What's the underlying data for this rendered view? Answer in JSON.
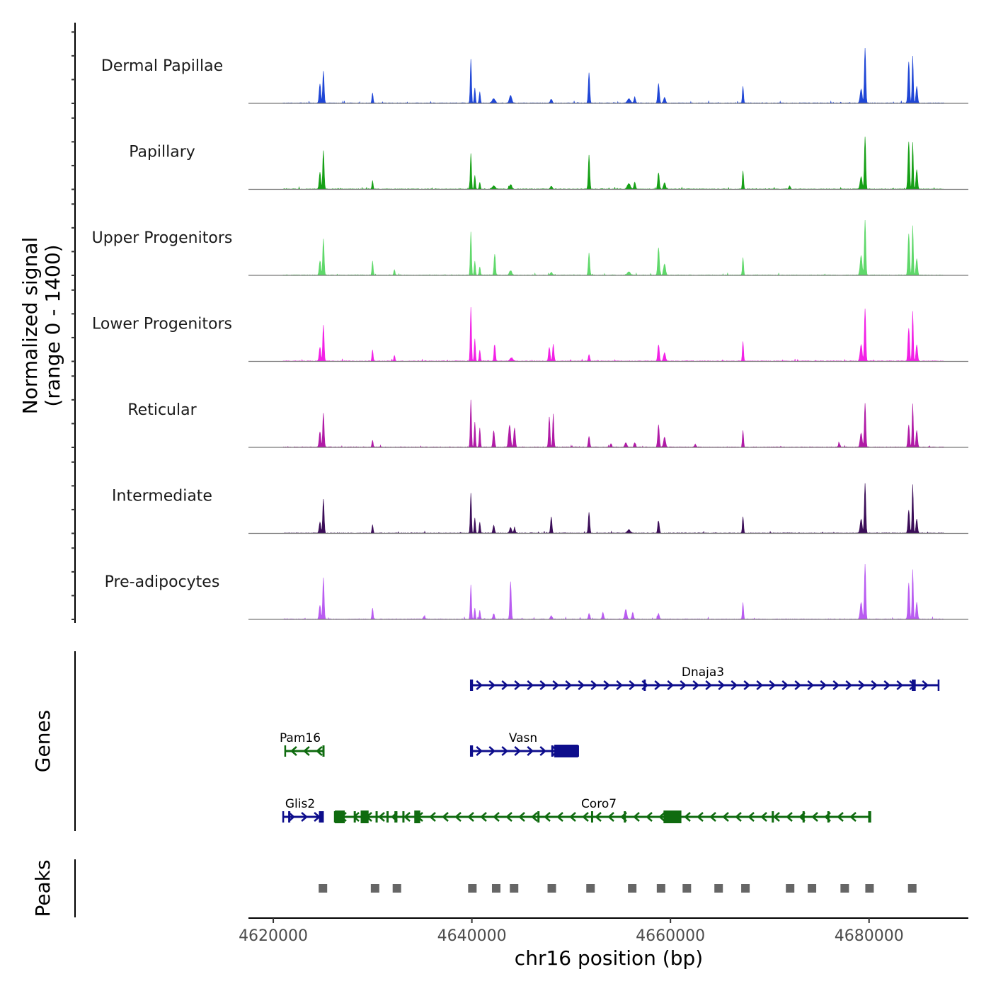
{
  "chart_data": {
    "type": "area",
    "title": "",
    "xlabel": "chr16 position (bp)",
    "ylabel": "Normalized signal\n(range 0 - 1400)",
    "ylabel_lines": [
      "Normalized signal",
      "(range 0 - 1400)"
    ],
    "ylim": [
      0,
      1400
    ],
    "xlim": [
      4617500,
      4690000
    ],
    "x_ticks": [
      4620000,
      4640000,
      4660000,
      4680000
    ],
    "x_tick_labels": [
      "4620000",
      "4640000",
      "4660000",
      "4680000"
    ],
    "panels": {
      "genes_label": "Genes",
      "peaks_label": "Peaks"
    },
    "tracks": [
      {
        "name": "Dermal Papillae",
        "color": "#1f46d6",
        "peaks": [
          [
            4624700,
            0.35,
            80
          ],
          [
            4625050,
            0.58,
            70
          ],
          [
            4630000,
            0.18,
            60
          ],
          [
            4639900,
            0.8,
            60
          ],
          [
            4640300,
            0.28,
            60
          ],
          [
            4640800,
            0.2,
            60
          ],
          [
            4642200,
            0.08,
            150
          ],
          [
            4643900,
            0.14,
            120
          ],
          [
            4648000,
            0.07,
            100
          ],
          [
            4651800,
            0.55,
            70
          ],
          [
            4655800,
            0.08,
            150
          ],
          [
            4656400,
            0.1,
            80
          ],
          [
            4658800,
            0.35,
            80
          ],
          [
            4659400,
            0.1,
            100
          ],
          [
            4667300,
            0.3,
            60
          ],
          [
            4679600,
            1.0,
            70
          ],
          [
            4679200,
            0.25,
            100
          ],
          [
            4684000,
            0.75,
            80
          ],
          [
            4684400,
            0.85,
            60
          ],
          [
            4684800,
            0.3,
            80
          ]
        ]
      },
      {
        "name": "Papillary",
        "color": "#16a016",
        "peaks": [
          [
            4624700,
            0.3,
            80
          ],
          [
            4625050,
            0.7,
            70
          ],
          [
            4630000,
            0.15,
            60
          ],
          [
            4639900,
            0.65,
            60
          ],
          [
            4640300,
            0.25,
            60
          ],
          [
            4640800,
            0.12,
            60
          ],
          [
            4642200,
            0.06,
            150
          ],
          [
            4643900,
            0.08,
            120
          ],
          [
            4648000,
            0.05,
            100
          ],
          [
            4651800,
            0.62,
            70
          ],
          [
            4655800,
            0.1,
            150
          ],
          [
            4656400,
            0.12,
            80
          ],
          [
            4658800,
            0.3,
            80
          ],
          [
            4659400,
            0.12,
            100
          ],
          [
            4667300,
            0.33,
            60
          ],
          [
            4672000,
            0.06,
            80
          ],
          [
            4679600,
            0.95,
            70
          ],
          [
            4679200,
            0.22,
            100
          ],
          [
            4684000,
            0.85,
            80
          ],
          [
            4684400,
            0.85,
            60
          ],
          [
            4684800,
            0.35,
            80
          ]
        ]
      },
      {
        "name": "Upper Progenitors",
        "color": "#5fd86a",
        "peaks": [
          [
            4624700,
            0.25,
            80
          ],
          [
            4625050,
            0.65,
            70
          ],
          [
            4630000,
            0.25,
            60
          ],
          [
            4632200,
            0.1,
            60
          ],
          [
            4639900,
            0.78,
            60
          ],
          [
            4640300,
            0.25,
            60
          ],
          [
            4640800,
            0.15,
            60
          ],
          [
            4642300,
            0.38,
            70
          ],
          [
            4643900,
            0.08,
            120
          ],
          [
            4648000,
            0.05,
            100
          ],
          [
            4651800,
            0.4,
            70
          ],
          [
            4655800,
            0.06,
            150
          ],
          [
            4658800,
            0.5,
            80
          ],
          [
            4659400,
            0.2,
            100
          ],
          [
            4667300,
            0.32,
            60
          ],
          [
            4679600,
            1.0,
            70
          ],
          [
            4679200,
            0.35,
            100
          ],
          [
            4684000,
            0.75,
            80
          ],
          [
            4684400,
            0.9,
            60
          ],
          [
            4684800,
            0.3,
            80
          ]
        ]
      },
      {
        "name": "Lower Progenitors",
        "color": "#f221e6",
        "peaks": [
          [
            4624700,
            0.25,
            80
          ],
          [
            4625050,
            0.65,
            70
          ],
          [
            4630000,
            0.2,
            60
          ],
          [
            4632200,
            0.1,
            60
          ],
          [
            4639900,
            0.98,
            60
          ],
          [
            4640300,
            0.4,
            60
          ],
          [
            4640800,
            0.2,
            60
          ],
          [
            4642300,
            0.3,
            70
          ],
          [
            4644000,
            0.06,
            150
          ],
          [
            4647800,
            0.25,
            80
          ],
          [
            4648200,
            0.3,
            70
          ],
          [
            4651800,
            0.12,
            70
          ],
          [
            4658800,
            0.3,
            80
          ],
          [
            4659400,
            0.15,
            100
          ],
          [
            4667300,
            0.35,
            60
          ],
          [
            4679600,
            0.95,
            70
          ],
          [
            4679200,
            0.3,
            100
          ],
          [
            4684000,
            0.6,
            80
          ],
          [
            4684400,
            0.9,
            60
          ],
          [
            4684800,
            0.3,
            80
          ]
        ]
      },
      {
        "name": "Reticular",
        "color": "#b01aa6",
        "peaks": [
          [
            4624700,
            0.28,
            80
          ],
          [
            4625050,
            0.62,
            70
          ],
          [
            4630000,
            0.12,
            60
          ],
          [
            4639900,
            0.85,
            60
          ],
          [
            4640300,
            0.45,
            60
          ],
          [
            4640800,
            0.35,
            60
          ],
          [
            4642200,
            0.3,
            80
          ],
          [
            4643800,
            0.4,
            100
          ],
          [
            4644300,
            0.35,
            80
          ],
          [
            4647800,
            0.55,
            70
          ],
          [
            4648200,
            0.6,
            60
          ],
          [
            4651800,
            0.2,
            70
          ],
          [
            4654000,
            0.06,
            80
          ],
          [
            4655500,
            0.08,
            100
          ],
          [
            4656400,
            0.08,
            80
          ],
          [
            4658800,
            0.4,
            80
          ],
          [
            4659400,
            0.18,
            100
          ],
          [
            4662500,
            0.05,
            80
          ],
          [
            4667300,
            0.3,
            60
          ],
          [
            4677000,
            0.07,
            80
          ],
          [
            4679600,
            0.8,
            70
          ],
          [
            4679200,
            0.25,
            100
          ],
          [
            4684000,
            0.4,
            80
          ],
          [
            4684400,
            0.78,
            60
          ],
          [
            4684800,
            0.3,
            80
          ]
        ]
      },
      {
        "name": "Intermediate",
        "color": "#3b0d58",
        "peaks": [
          [
            4624700,
            0.2,
            80
          ],
          [
            4625050,
            0.62,
            70
          ],
          [
            4630000,
            0.15,
            60
          ],
          [
            4639900,
            0.72,
            60
          ],
          [
            4640300,
            0.28,
            60
          ],
          [
            4640800,
            0.2,
            60
          ],
          [
            4642200,
            0.14,
            80
          ],
          [
            4643900,
            0.1,
            100
          ],
          [
            4644300,
            0.08,
            80
          ],
          [
            4648000,
            0.3,
            70
          ],
          [
            4651800,
            0.38,
            70
          ],
          [
            4655800,
            0.06,
            150
          ],
          [
            4658800,
            0.22,
            80
          ],
          [
            4667300,
            0.3,
            60
          ],
          [
            4679600,
            0.9,
            70
          ],
          [
            4679200,
            0.25,
            100
          ],
          [
            4684000,
            0.42,
            80
          ],
          [
            4684400,
            0.88,
            60
          ],
          [
            4684800,
            0.25,
            80
          ]
        ]
      },
      {
        "name": "Pre-adipocytes",
        "color": "#b95cf1",
        "peaks": [
          [
            4624700,
            0.25,
            80
          ],
          [
            4625050,
            0.75,
            70
          ],
          [
            4630000,
            0.2,
            60
          ],
          [
            4635200,
            0.05,
            80
          ],
          [
            4639900,
            0.62,
            60
          ],
          [
            4640300,
            0.2,
            60
          ],
          [
            4640800,
            0.16,
            60
          ],
          [
            4642200,
            0.1,
            80
          ],
          [
            4643900,
            0.68,
            70
          ],
          [
            4648000,
            0.06,
            100
          ],
          [
            4651800,
            0.1,
            70
          ],
          [
            4653200,
            0.12,
            80
          ],
          [
            4655500,
            0.18,
            100
          ],
          [
            4656200,
            0.12,
            80
          ],
          [
            4658800,
            0.1,
            80
          ],
          [
            4667300,
            0.3,
            60
          ],
          [
            4679600,
            1.0,
            70
          ],
          [
            4679200,
            0.3,
            100
          ],
          [
            4684000,
            0.65,
            80
          ],
          [
            4684400,
            0.9,
            60
          ],
          [
            4684800,
            0.3,
            80
          ]
        ]
      }
    ],
    "genes": [
      {
        "name": "Dnaja3",
        "strand": "+",
        "color": "#0e0e8c",
        "start": 4639900,
        "end": 4687000,
        "row": 0,
        "exons": [
          [
            4639900,
            4640050
          ],
          [
            4657300,
            4657400
          ],
          [
            4684300,
            4684700
          ]
        ]
      },
      {
        "name": "Pam16",
        "strand": "-",
        "color": "#0f6b0f",
        "start": 4621200,
        "end": 4625050,
        "row": 1,
        "exons": [
          [
            4624950,
            4625050
          ]
        ]
      },
      {
        "name": "Vasn",
        "strand": "+",
        "color": "#0e0e8c",
        "start": 4639900,
        "end": 4650700,
        "row": 1,
        "exons": [
          [
            4639900,
            4640050
          ],
          [
            4648000,
            4648150
          ],
          [
            4648300,
            4650700
          ]
        ]
      },
      {
        "name": "Glis2",
        "strand": "+",
        "color": "#0e0e8c",
        "start": 4621000,
        "end": 4625000,
        "row": 2,
        "exons": [
          [
            4621500,
            4621600
          ],
          [
            4624600,
            4625000
          ]
        ]
      },
      {
        "name": "Coro7",
        "strand": "-",
        "color": "#0f6b0f",
        "start": 4626200,
        "end": 4680000,
        "row": 2,
        "exons": [
          [
            4626200,
            4627200
          ],
          [
            4628100,
            4628300
          ],
          [
            4628800,
            4629600
          ],
          [
            4630300,
            4630500
          ],
          [
            4631400,
            4631600
          ],
          [
            4632200,
            4632500
          ],
          [
            4633000,
            4633200
          ],
          [
            4634200,
            4634800
          ],
          [
            4646600,
            4646800
          ],
          [
            4652000,
            4652200
          ],
          [
            4655300,
            4655400
          ],
          [
            4659300,
            4661100
          ],
          [
            4670200,
            4670400
          ],
          [
            4673300,
            4673500
          ],
          [
            4675800,
            4676000
          ],
          [
            4680000,
            4680100
          ]
        ]
      }
    ],
    "peaks": [
      [
        4624750,
        4625250
      ],
      [
        4630000,
        4630500
      ],
      [
        4632200,
        4632700
      ],
      [
        4639800,
        4640300
      ],
      [
        4642200,
        4642700
      ],
      [
        4644000,
        4644500
      ],
      [
        4647800,
        4648300
      ],
      [
        4651700,
        4652200
      ],
      [
        4655900,
        4656400
      ],
      [
        4658800,
        4659300
      ],
      [
        4661400,
        4661900
      ],
      [
        4664600,
        4665100
      ],
      [
        4667300,
        4667800
      ],
      [
        4671800,
        4672300
      ],
      [
        4674000,
        4674500
      ],
      [
        4677300,
        4677800
      ],
      [
        4679800,
        4680300
      ],
      [
        4684100,
        4684600
      ]
    ],
    "peak_color": "#666666"
  }
}
